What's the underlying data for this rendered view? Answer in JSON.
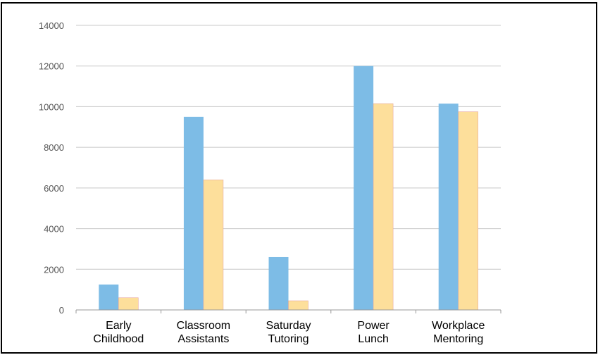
{
  "chart_data": {
    "type": "bar",
    "title": "",
    "xlabel": "",
    "ylabel": "",
    "categories": [
      [
        "Early",
        "Childhood"
      ],
      [
        "Classroom",
        "Assistants"
      ],
      [
        "Saturday",
        "Tutoring"
      ],
      [
        "Power",
        "Lunch"
      ],
      [
        "Workplace",
        "Mentoring"
      ]
    ],
    "series": [
      {
        "values": [
          1250,
          9500,
          2600,
          12000,
          10150
        ],
        "color": "#7dbce6"
      },
      {
        "values": [
          600,
          6400,
          450,
          10150,
          9750
        ],
        "color": "#fddf9b"
      }
    ],
    "ylim": [
      0,
      14000
    ],
    "yticks": [
      0,
      2000,
      4000,
      6000,
      8000,
      10000,
      12000,
      14000
    ],
    "grid": true,
    "legend": "none"
  }
}
